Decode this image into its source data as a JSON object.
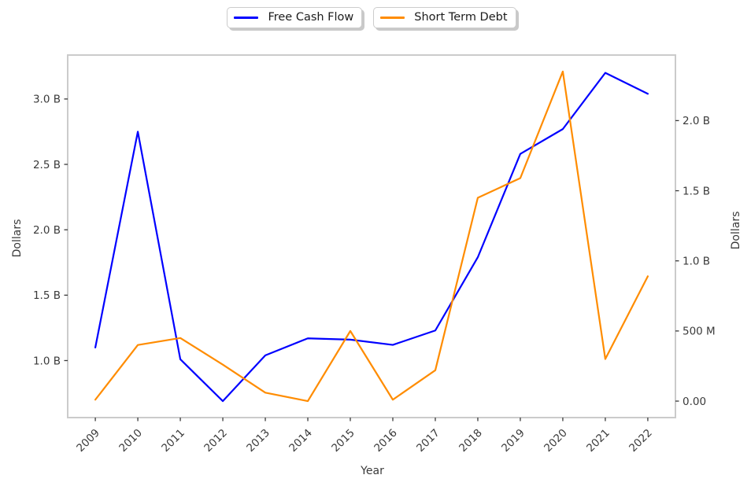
{
  "legend": {
    "items": [
      {
        "label": "Free Cash Flow",
        "color": "#0000ff"
      },
      {
        "label": "Short Term Debt",
        "color": "#ff8c00"
      }
    ]
  },
  "chart_data": {
    "type": "line",
    "title": "",
    "xlabel": "Year",
    "ylabel_left": "Dollars",
    "ylabel_right": "Dollars",
    "grid": false,
    "legend_position": "top-center",
    "x": [
      "2009",
      "2010",
      "2011",
      "2012",
      "2013",
      "2014",
      "2015",
      "2016",
      "2017",
      "2018",
      "2019",
      "2020",
      "2021",
      "2022"
    ],
    "series": [
      {
        "name": "Free Cash Flow",
        "axis": "left",
        "color": "#0000ff",
        "values_billions": [
          1.1,
          2.75,
          1.01,
          0.69,
          1.04,
          1.17,
          1.16,
          1.12,
          1.23,
          1.79,
          2.58,
          2.77,
          3.2,
          3.04
        ]
      },
      {
        "name": "Short Term Debt",
        "axis": "right",
        "color": "#ff8c00",
        "values_billions": [
          0.01,
          0.4,
          0.45,
          0.26,
          0.06,
          0.0,
          0.5,
          0.01,
          0.22,
          1.45,
          1.59,
          2.35,
          0.3,
          0.89
        ]
      }
    ],
    "left_axis": {
      "ticks": [
        1.0,
        1.5,
        2.0,
        2.5,
        3.0
      ],
      "tick_labels": [
        "1.0 B",
        "1.5 B",
        "2.0 B",
        "2.5 B",
        "3.0 B"
      ],
      "range": [
        0.564,
        3.336
      ]
    },
    "right_axis": {
      "ticks": [
        0.0,
        0.5,
        1.0,
        1.5,
        2.0
      ],
      "tick_labels": [
        "0.00",
        "500 M",
        "1.0 B",
        "1.5 B",
        "2.0 B"
      ],
      "range": [
        -0.1175,
        2.4675
      ]
    }
  }
}
